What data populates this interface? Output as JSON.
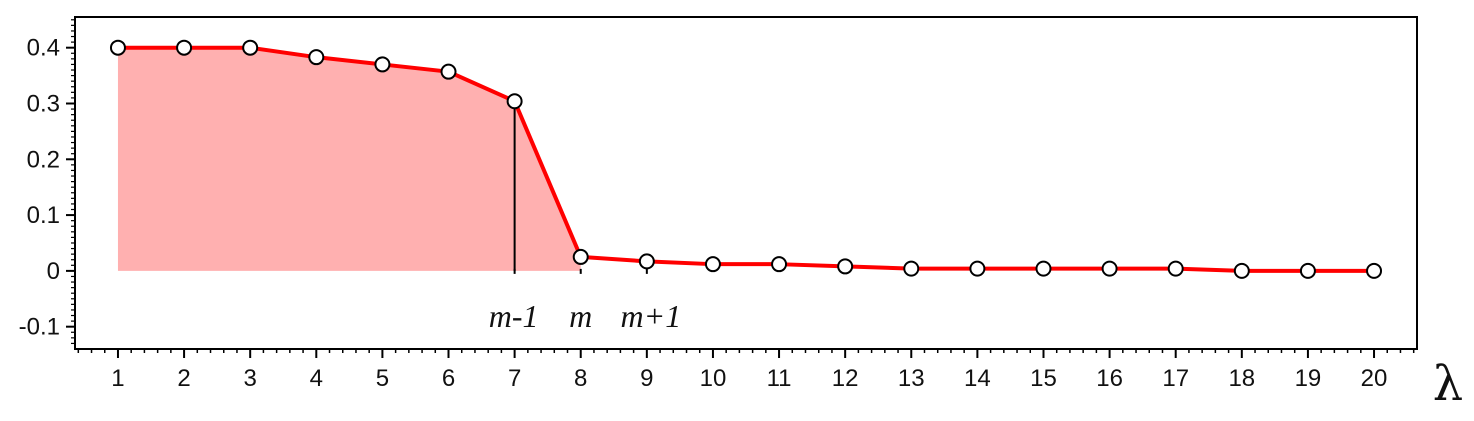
{
  "chart_data": {
    "type": "line",
    "title": "",
    "xlabel": "λ",
    "ylabel": "",
    "x": [
      1,
      2,
      3,
      4,
      5,
      6,
      7,
      8,
      9,
      10,
      11,
      12,
      13,
      14,
      15,
      16,
      17,
      18,
      19,
      20
    ],
    "series": [
      {
        "values": [
          0.4,
          0.4,
          0.4,
          0.383,
          0.37,
          0.357,
          0.304,
          0.025,
          0.017,
          0.012,
          0.012,
          0.008,
          0.004,
          0.004,
          0.004,
          0.004,
          0.004,
          0.0,
          0.0,
          0.0
        ]
      }
    ],
    "xticks": [
      "1",
      "2",
      "3",
      "4",
      "5",
      "6",
      "7",
      "8",
      "9",
      "10",
      "11",
      "12",
      "13",
      "14",
      "15",
      "16",
      "17",
      "18",
      "19",
      "20"
    ],
    "yticks": [
      "-0.1",
      "0",
      "0.1",
      "0.2",
      "0.3",
      "0.4"
    ],
    "ytick_values": [
      -0.1,
      0,
      0.1,
      0.2,
      0.3,
      0.4
    ],
    "xlim": [
      0.35,
      20.65
    ],
    "ylim": [
      -0.14,
      0.455
    ],
    "grid": false,
    "shaded_area": {
      "from_x": 1,
      "to_x": 8,
      "color": "#ffb0b0"
    },
    "marker_line_at_x": 7,
    "annotations": [
      {
        "text": "m-1",
        "x": 7
      },
      {
        "text": "m",
        "x": 8
      },
      {
        "text": "m+1",
        "x": 9
      }
    ],
    "colors": {
      "line": "#ff0000",
      "marker_fill": "#ffffff",
      "marker_edge": "#000000",
      "fill": "#ffb0b0"
    }
  }
}
